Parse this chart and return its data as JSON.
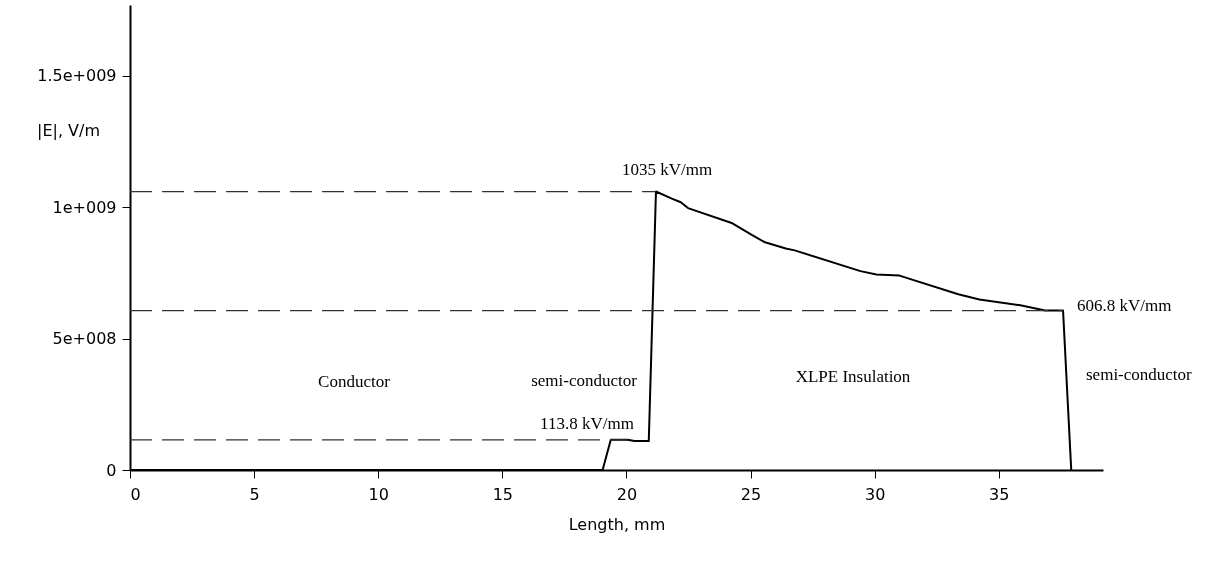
{
  "chart_data": {
    "type": "line",
    "xlabel": "Length, mm",
    "ylabel": "|E|, V/m",
    "x": [
      0,
      19.04,
      19.37,
      20.04,
      20.33,
      20.9,
      21.19,
      21.83,
      22.19,
      22.48,
      24.27,
      25.05,
      25.55,
      26.42,
      26.78,
      29.43,
      30.07,
      31.0,
      33.37,
      34.22,
      35.87,
      36.87,
      37.59,
      37.92
    ],
    "series": [
      {
        "color": "#000000",
        "values": [
          0,
          0,
          115000000,
          115000000,
          110000000,
          110000000,
          1060000000,
          1033000000,
          1019000000,
          997000000,
          939000000,
          895000000,
          868000000,
          843000000,
          836000000,
          757000000,
          744000000,
          740000000,
          669000000,
          649000000,
          627000000,
          607000000,
          607000000,
          0
        ]
      }
    ],
    "xlim": [
      0,
      39.2
    ],
    "xticks": [
      0,
      5,
      10,
      15,
      20,
      25,
      30,
      35
    ],
    "ylim": [
      0,
      1770000000
    ],
    "yticks": [
      {
        "value": 0,
        "label": "0"
      },
      {
        "value": 500000000,
        "label": "5e+008"
      },
      {
        "value": 1000000000,
        "label": "1e+009"
      },
      {
        "value": 1500000000,
        "label": "1.5e+009"
      }
    ],
    "grid": false,
    "marker": "none",
    "line_style": "solid",
    "ref_lines": [
      {
        "axis": "y",
        "value": 1060000000,
        "line_style": "dashed"
      },
      {
        "axis": "y",
        "value": 607000000,
        "line_style": "dashed"
      },
      {
        "axis": "y",
        "value": 115000000,
        "line_style": "dashed"
      }
    ],
    "annotations": [
      "1035 kV/mm",
      "606.8 kV/mm",
      "113.8 kV/mm",
      "Conductor",
      "semi-conductor",
      "XLPE Insulation",
      "semi-conductor"
    ]
  }
}
